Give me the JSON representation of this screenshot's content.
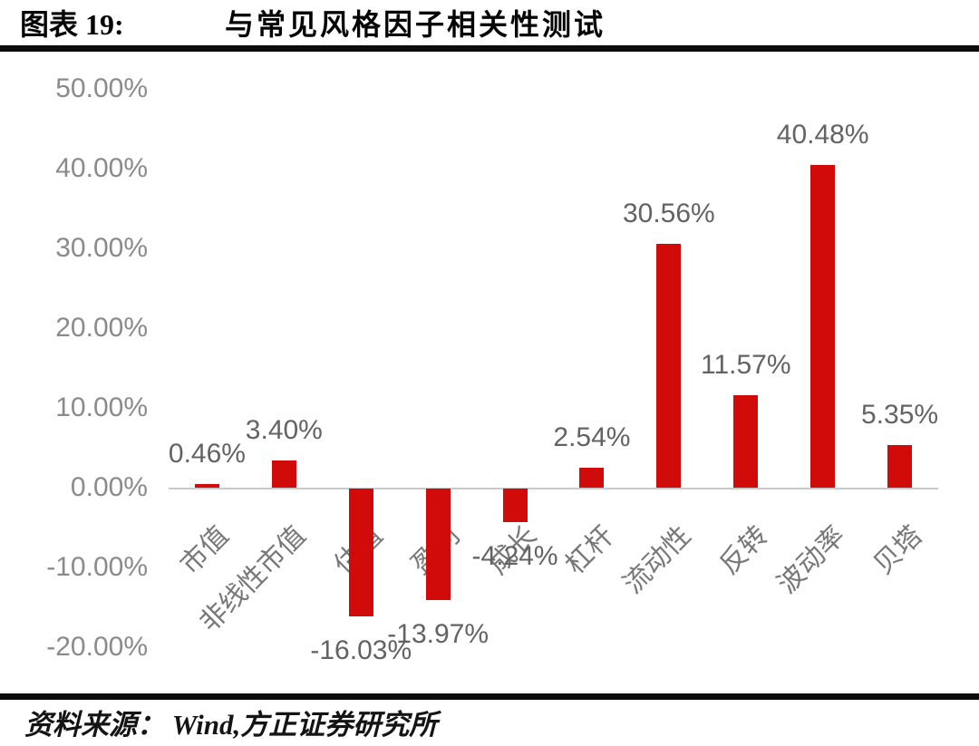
{
  "header": {
    "figure_label": "图表 19:",
    "title": "与常见风格因子相关性测试"
  },
  "footer": {
    "source": "资料来源：  Wind,方正证券研究所"
  },
  "chart_data": {
    "type": "bar",
    "title": "与常见风格因子相关性测试",
    "categories": [
      "市值",
      "非线性市值",
      "估值",
      "盈利",
      "成长",
      "杠杆",
      "流动性",
      "反转",
      "波动率",
      "贝塔"
    ],
    "values": [
      0.46,
      3.4,
      -16.03,
      -13.97,
      -4.24,
      2.54,
      30.56,
      11.57,
      40.48,
      5.35
    ],
    "data_labels": [
      "0.46%",
      "3.40%",
      "-16.03%",
      "-13.97%",
      "-4.24%",
      "2.54%",
      "30.56%",
      "11.57%",
      "40.48%",
      "5.35%"
    ],
    "y_ticks": [
      "50.00%",
      "40.00%",
      "30.00%",
      "20.00%",
      "10.00%",
      "0.00%",
      "-10.00%",
      "-20.00%"
    ],
    "y_tick_values": [
      50,
      40,
      30,
      20,
      10,
      0,
      -10,
      -20
    ],
    "ylim": [
      -20,
      50
    ],
    "xlabel": "",
    "ylabel": "",
    "grid": false,
    "legend": false,
    "bar_color": "#d10a0a",
    "axis_line_color": "#c9c9c9",
    "tick_label_color": "#8a8a8a",
    "data_label_color": "#636363",
    "category_label_color": "#787878"
  }
}
